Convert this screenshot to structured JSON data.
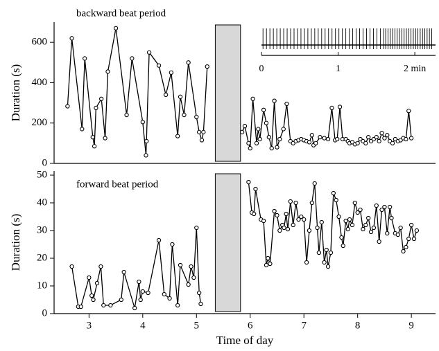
{
  "chart_data": [
    {
      "type": "line",
      "title": "backward beat period",
      "ylabel": "Duration (s)",
      "xlim": [
        2.35,
        9.45
      ],
      "ylim": [
        0,
        700
      ],
      "yticks": [
        0,
        200,
        400,
        600
      ],
      "shaded_span": [
        5.35,
        5.82
      ],
      "series": [
        {
          "color": "#000000",
          "x": [
            2.6,
            2.68,
            2.87,
            2.92,
            3.07,
            3.1,
            3.13,
            3.23,
            3.3,
            3.35,
            3.5,
            3.7,
            3.8,
            4.0,
            4.06,
            4.07,
            4.12,
            4.3,
            4.43,
            4.53,
            4.65,
            4.7,
            4.77,
            4.85,
            5.0,
            5.05,
            5.1,
            5.13,
            5.2,
            5.5,
            5.85,
            5.9,
            5.97,
            6.0,
            6.05,
            6.12,
            6.15,
            6.18,
            6.25,
            6.3,
            6.35,
            6.4,
            6.45,
            6.5,
            6.55,
            6.62,
            6.68,
            6.75,
            6.8,
            6.85,
            6.9,
            6.95,
            7.0,
            7.05,
            7.1,
            7.15,
            7.18,
            7.22,
            7.3,
            7.38,
            7.45,
            7.52,
            7.58,
            7.62,
            7.67,
            7.72,
            7.78,
            7.82,
            7.85,
            7.9,
            7.95,
            8.0,
            8.05,
            8.1,
            8.15,
            8.2,
            8.25,
            8.3,
            8.35,
            8.4,
            8.45,
            8.5,
            8.55,
            8.6,
            8.65,
            8.7,
            8.75,
            8.8,
            8.85,
            8.9,
            8.95,
            9.0
          ],
          "values": [
            283,
            620,
            170,
            520,
            130,
            85,
            275,
            320,
            125,
            455,
            670,
            240,
            520,
            205,
            40,
            110,
            550,
            485,
            340,
            450,
            135,
            330,
            240,
            500,
            230,
            155,
            115,
            155,
            480,
            null,
            155,
            185,
            100,
            75,
            320,
            100,
            170,
            120,
            265,
            200,
            130,
            75,
            310,
            80,
            120,
            170,
            295,
            110,
            100,
            110,
            115,
            120,
            115,
            110,
            105,
            140,
            90,
            100,
            130,
            125,
            120,
            275,
            115,
            120,
            280,
            120,
            120,
            110,
            100,
            105,
            95,
            100,
            120,
            110,
            100,
            130,
            110,
            120,
            130,
            110,
            150,
            125,
            140,
            110,
            100,
            120,
            110,
            115,
            125,
            120,
            260,
            125
          ]
        }
      ]
    },
    {
      "type": "line",
      "title": "forward beat period",
      "ylabel": "Duration (s)",
      "xlabel": "Time of day",
      "xlim": [
        2.35,
        9.45
      ],
      "ylim": [
        0,
        51.5
      ],
      "yticks": [
        0,
        10,
        20,
        30,
        40,
        50
      ],
      "xticks": [
        3,
        4,
        5,
        6,
        7,
        8,
        9
      ],
      "shaded_span": [
        5.35,
        5.82
      ],
      "series": [
        {
          "color": "#000000",
          "x": [
            2.68,
            2.8,
            2.85,
            3.0,
            3.05,
            3.08,
            3.15,
            3.22,
            3.27,
            3.4,
            3.6,
            3.65,
            3.85,
            3.93,
            3.96,
            4.0,
            4.1,
            4.3,
            4.4,
            4.5,
            4.55,
            4.65,
            4.7,
            4.85,
            4.9,
            4.95,
            5.0,
            5.05,
            5.08,
            5.5,
            5.97,
            6.03,
            6.07,
            6.1,
            6.2,
            6.25,
            6.3,
            6.33,
            6.37,
            6.45,
            6.5,
            6.55,
            6.6,
            6.63,
            6.67,
            6.7,
            6.75,
            6.8,
            6.85,
            6.9,
            6.95,
            7.0,
            7.05,
            7.1,
            7.15,
            7.2,
            7.25,
            7.28,
            7.33,
            7.38,
            7.42,
            7.45,
            7.5,
            7.55,
            7.6,
            7.65,
            7.7,
            7.73,
            7.78,
            7.82,
            7.85,
            7.9,
            7.95,
            8.0,
            8.05,
            8.1,
            8.15,
            8.2,
            8.25,
            8.3,
            8.35,
            8.4,
            8.45,
            8.5,
            8.55,
            8.6,
            8.63,
            8.7,
            8.75,
            8.8,
            8.85,
            8.9,
            8.95,
            9.0,
            9.05,
            9.1
          ],
          "values": [
            17,
            2.5,
            2.5,
            13,
            6.5,
            5,
            11,
            17,
            3,
            3,
            5,
            15,
            2,
            11.5,
            5,
            8,
            7.5,
            26.5,
            7,
            5.5,
            25,
            3,
            17.5,
            10.5,
            17,
            13,
            31,
            7.5,
            3.5,
            null,
            47.5,
            36.5,
            36,
            45,
            34,
            33.5,
            17.5,
            20,
            18,
            37,
            35.5,
            30,
            32,
            31,
            36,
            30.5,
            40.5,
            32,
            40,
            34,
            35,
            34,
            18.5,
            30,
            40,
            47,
            31,
            22,
            33,
            18.5,
            23,
            17,
            22,
            43.5,
            41,
            35,
            27.5,
            24.5,
            33.5,
            30.5,
            34,
            32,
            40,
            36.5,
            37.5,
            30.5,
            32,
            34.5,
            29.5,
            31,
            39,
            26,
            37.5,
            38.5,
            29,
            38.5,
            34.5,
            29,
            28.5,
            31,
            22.5,
            24,
            27,
            32,
            27,
            30
          ]
        }
      ]
    },
    {
      "type": "spike_train",
      "xlim": [
        0,
        2.27
      ],
      "xticks": [
        0,
        1,
        {
          "value": 2,
          "label": "2 min"
        }
      ],
      "x": [
        0.02,
        0.065,
        0.11,
        0.155,
        0.2,
        0.245,
        0.29,
        0.335,
        0.38,
        0.425,
        0.47,
        0.515,
        0.56,
        0.605,
        0.65,
        0.695,
        0.74,
        0.785,
        0.83,
        0.875,
        0.92,
        0.965,
        1.01,
        1.055,
        1.1,
        1.145,
        1.19,
        1.235,
        1.28,
        1.325,
        1.37,
        1.415,
        1.46,
        1.505,
        1.55,
        1.595,
        1.62,
        1.65,
        1.68,
        1.71,
        1.74,
        1.77,
        1.8,
        1.83,
        1.86,
        1.89,
        1.92,
        1.95,
        1.98,
        2.01,
        2.04,
        2.07,
        2.1,
        2.13,
        2.16,
        2.19,
        2.22
      ]
    }
  ]
}
